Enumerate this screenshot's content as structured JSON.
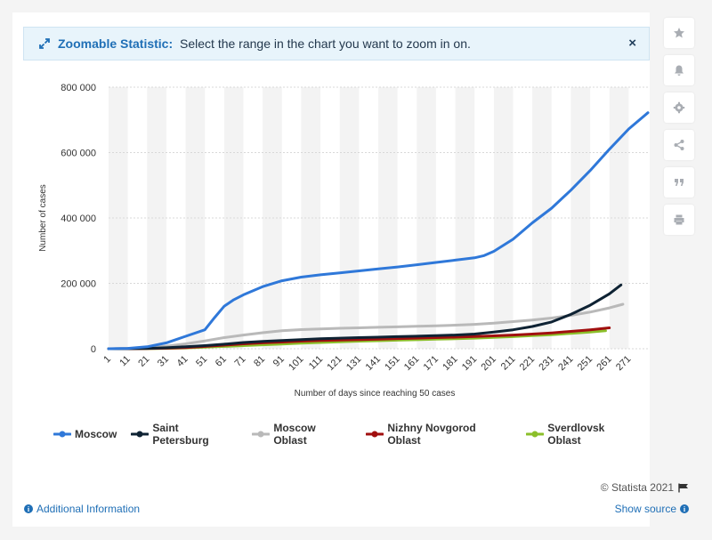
{
  "banner": {
    "title": "Zoomable Statistic:",
    "text": "Select the range in the chart you want to zoom in on.",
    "close": "×"
  },
  "tools": [
    "star-icon",
    "bell-icon",
    "gear-icon",
    "share-icon",
    "quote-icon",
    "print-icon"
  ],
  "footer": {
    "credit": "© Statista 2021",
    "additional_info": "Additional Information",
    "show_source": "Show source"
  },
  "colors": {
    "Moscow": "#2f78d9",
    "Saint Petersburg": "#0e2233",
    "Moscow Oblast": "#b9b9b9",
    "Nizhny Novgorod Oblast": "#a10f0f",
    "Sverdlovsk Oblast": "#8bbf2a"
  },
  "chart_data": {
    "type": "line",
    "xlabel": "Number of days since reaching 50 cases",
    "ylabel": "Number of cases",
    "xlim": [
      1,
      281
    ],
    "ylim": [
      0,
      800000
    ],
    "x_ticks": [
      1,
      11,
      21,
      31,
      41,
      51,
      61,
      71,
      81,
      91,
      101,
      111,
      121,
      131,
      141,
      151,
      161,
      171,
      181,
      191,
      201,
      211,
      221,
      231,
      241,
      251,
      261,
      271
    ],
    "y_ticks": [
      0,
      200000,
      400000,
      600000,
      800000
    ],
    "y_tick_labels": [
      "0",
      "200 000",
      "400 000",
      "600 000",
      "800 000"
    ],
    "grid": "horizontal dashed",
    "legend_position": "bottom",
    "series": [
      {
        "name": "Moscow",
        "x": [
          1,
          11,
          21,
          31,
          41,
          51,
          56,
          61,
          66,
          71,
          81,
          91,
          101,
          111,
          121,
          131,
          141,
          151,
          161,
          171,
          181,
          191,
          196,
          201,
          211,
          221,
          231,
          241,
          251,
          261,
          271,
          281
        ],
        "y": [
          100,
          1000,
          6000,
          18000,
          38000,
          58000,
          95000,
          130000,
          150000,
          165000,
          190000,
          208000,
          219000,
          226000,
          232000,
          238000,
          244000,
          250000,
          257000,
          264000,
          271000,
          278000,
          285000,
          298000,
          335000,
          385000,
          430000,
          485000,
          545000,
          610000,
          672000,
          722000
        ]
      },
      {
        "name": "Saint Petersburg",
        "x": [
          1,
          11,
          21,
          31,
          41,
          51,
          61,
          71,
          81,
          91,
          101,
          111,
          121,
          131,
          141,
          151,
          161,
          171,
          181,
          191,
          201,
          211,
          221,
          231,
          241,
          251,
          261,
          267
        ],
        "y": [
          0,
          300,
          1200,
          3000,
          6000,
          9500,
          14000,
          19000,
          22500,
          25000,
          28000,
          30500,
          32500,
          34000,
          35500,
          37000,
          38500,
          40000,
          42000,
          45000,
          51000,
          58000,
          68000,
          82000,
          105000,
          133000,
          168000,
          195000
        ]
      },
      {
        "name": "Moscow Oblast",
        "x": [
          1,
          11,
          21,
          31,
          41,
          51,
          61,
          71,
          81,
          91,
          101,
          111,
          121,
          131,
          141,
          151,
          161,
          171,
          181,
          191,
          201,
          211,
          221,
          231,
          241,
          251,
          261,
          268
        ],
        "y": [
          0,
          500,
          3000,
          8000,
          15000,
          24000,
          34000,
          42000,
          49000,
          55000,
          58500,
          60500,
          62500,
          64000,
          65500,
          67000,
          68500,
          70000,
          72000,
          74500,
          78000,
          83000,
          88000,
          94000,
          102000,
          112000,
          125000,
          136000
        ]
      },
      {
        "name": "Nizhny Novgorod Oblast",
        "x": [
          1,
          11,
          21,
          31,
          41,
          51,
          61,
          71,
          81,
          91,
          101,
          111,
          121,
          131,
          141,
          151,
          161,
          171,
          181,
          191,
          201,
          211,
          221,
          231,
          241,
          251,
          261
        ],
        "y": [
          0,
          100,
          500,
          1500,
          3500,
          7000,
          11000,
          15000,
          18000,
          20500,
          23000,
          25000,
          26500,
          28000,
          29500,
          31000,
          32500,
          34000,
          35500,
          37500,
          39500,
          42000,
          45000,
          48500,
          53000,
          58000,
          64000
        ]
      },
      {
        "name": "Sverdlovsk Oblast",
        "x": [
          1,
          11,
          21,
          31,
          41,
          51,
          61,
          71,
          81,
          91,
          101,
          111,
          121,
          131,
          141,
          151,
          161,
          171,
          181,
          191,
          201,
          211,
          221,
          231,
          241,
          251,
          259
        ],
        "y": [
          0,
          100,
          300,
          1000,
          2500,
          4500,
          7000,
          9500,
          12000,
          14500,
          17000,
          19000,
          21000,
          23000,
          24500,
          26000,
          27500,
          29000,
          30500,
          32500,
          34500,
          37000,
          40000,
          43000,
          47000,
          51000,
          55000
        ]
      }
    ]
  }
}
